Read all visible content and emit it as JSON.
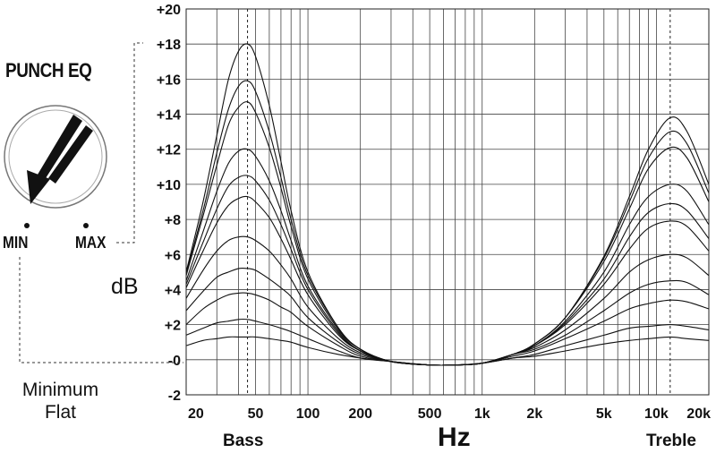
{
  "knob": {
    "title": "PUNCH EQ",
    "min_label": "MIN",
    "max_label": "MAX",
    "note_line1": "Minimum",
    "note_line2": "Flat"
  },
  "chart_data": {
    "type": "line",
    "title": "",
    "xlabel": "Hz",
    "ylabel": "dB",
    "x_scale": "log",
    "xlim": [
      20,
      20000
    ],
    "ylim": [
      -2,
      20
    ],
    "grid": true,
    "y_ticks": [
      "+20",
      "+18",
      "+16",
      "+14",
      "+12",
      "+10",
      "+8",
      "+6",
      "+4",
      "+2",
      "-0",
      "-2"
    ],
    "y_tick_values": [
      20,
      18,
      16,
      14,
      12,
      10,
      8,
      6,
      4,
      2,
      0,
      -2
    ],
    "x_ticks": [
      "20",
      "50",
      "100",
      "200",
      "500",
      "1k",
      "2k",
      "5k",
      "10k",
      "20k"
    ],
    "x_tick_values": [
      20,
      50,
      100,
      200,
      500,
      1000,
      2000,
      5000,
      10000,
      20000
    ],
    "x_minor_grid": [
      30,
      40,
      60,
      70,
      80,
      90,
      300,
      400,
      600,
      700,
      800,
      900,
      3000,
      4000,
      6000,
      7000,
      8000,
      9000
    ],
    "markers": [
      {
        "label": "Bass",
        "freq": 45
      },
      {
        "label": "Treble",
        "freq": 12000
      }
    ],
    "bass_freq": 45,
    "treble_freq": 12000,
    "curve_freqs": [
      20,
      25,
      30,
      35,
      40,
      45,
      50,
      60,
      70,
      80,
      100,
      150,
      200,
      300,
      500,
      700,
      1000,
      1500,
      2000,
      3000,
      5000,
      7000,
      9000,
      12000,
      15000,
      20000
    ],
    "series": [
      {
        "values": [
          5.0,
          9.0,
          12.8,
          16.0,
          17.6,
          18.0,
          17.3,
          14.5,
          11.3,
          8.5,
          5.0,
          1.8,
          0.6,
          -0.1,
          -0.3,
          -0.3,
          -0.2,
          0.3,
          0.9,
          2.4,
          5.9,
          9.3,
          12.0,
          13.8,
          13.0,
          10.0
        ]
      },
      {
        "values": [
          4.9,
          8.5,
          11.8,
          14.3,
          15.6,
          15.9,
          15.3,
          13.0,
          10.4,
          8.0,
          4.8,
          1.8,
          0.6,
          -0.1,
          -0.3,
          -0.3,
          -0.2,
          0.3,
          0.9,
          2.4,
          5.8,
          9.0,
          11.5,
          13.0,
          12.3,
          9.5
        ]
      },
      {
        "values": [
          4.8,
          8.2,
          11.1,
          13.4,
          14.4,
          14.7,
          14.1,
          12.1,
          9.8,
          7.6,
          4.6,
          1.7,
          0.6,
          -0.1,
          -0.3,
          -0.3,
          -0.2,
          0.3,
          0.9,
          2.4,
          5.6,
          8.6,
          10.9,
          12.1,
          11.5,
          9.0
        ]
      },
      {
        "values": [
          4.5,
          7.3,
          9.6,
          11.2,
          11.9,
          12.0,
          11.6,
          10.2,
          8.5,
          6.8,
          4.2,
          1.6,
          0.5,
          -0.1,
          -0.3,
          -0.3,
          -0.2,
          0.3,
          0.8,
          2.2,
          5.0,
          7.7,
          9.3,
          10.0,
          9.6,
          7.7
        ]
      },
      {
        "values": [
          4.3,
          6.7,
          8.6,
          9.9,
          10.4,
          10.5,
          10.2,
          9.1,
          7.7,
          6.3,
          4.0,
          1.5,
          0.5,
          -0.1,
          -0.3,
          -0.3,
          -0.2,
          0.3,
          0.8,
          2.1,
          4.6,
          7.0,
          8.4,
          8.9,
          8.5,
          6.9
        ]
      },
      {
        "values": [
          4.1,
          6.2,
          7.8,
          8.8,
          9.2,
          9.3,
          9.0,
          8.1,
          6.9,
          5.7,
          3.7,
          1.4,
          0.5,
          -0.1,
          -0.3,
          -0.3,
          -0.2,
          0.3,
          0.8,
          2.0,
          4.3,
          6.3,
          7.5,
          7.9,
          7.6,
          6.2
        ]
      },
      {
        "values": [
          3.5,
          5.1,
          6.2,
          6.8,
          7.0,
          7.0,
          6.8,
          6.2,
          5.4,
          4.6,
          3.0,
          1.2,
          0.4,
          -0.1,
          -0.3,
          -0.3,
          -0.2,
          0.3,
          0.7,
          1.7,
          3.5,
          5.0,
          5.7,
          6.0,
          5.8,
          4.8
        ]
      },
      {
        "values": [
          2.8,
          3.9,
          4.7,
          5.0,
          5.2,
          5.2,
          5.1,
          4.6,
          4.1,
          3.6,
          2.4,
          1.0,
          0.3,
          -0.1,
          -0.3,
          -0.3,
          -0.2,
          0.3,
          0.6,
          1.4,
          2.8,
          3.8,
          4.3,
          4.5,
          4.4,
          3.7
        ]
      },
      {
        "values": [
          2.0,
          2.9,
          3.4,
          3.7,
          3.8,
          3.8,
          3.7,
          3.4,
          3.0,
          2.7,
          1.9,
          0.8,
          0.2,
          -0.1,
          -0.3,
          -0.3,
          -0.2,
          0.2,
          0.5,
          1.2,
          2.2,
          2.9,
          3.2,
          3.4,
          3.3,
          2.9
        ]
      },
      {
        "values": [
          1.4,
          1.8,
          2.1,
          2.2,
          2.3,
          2.3,
          2.2,
          2.0,
          1.8,
          1.6,
          1.2,
          0.5,
          0.1,
          -0.1,
          -0.3,
          -0.3,
          -0.2,
          0.1,
          0.3,
          0.8,
          1.4,
          1.8,
          1.9,
          2.0,
          1.9,
          1.7
        ]
      },
      {
        "values": [
          0.8,
          1.1,
          1.2,
          1.3,
          1.3,
          1.3,
          1.3,
          1.2,
          1.1,
          1.0,
          0.7,
          0.3,
          0.1,
          -0.1,
          -0.3,
          -0.3,
          -0.2,
          0.1,
          0.2,
          0.5,
          0.9,
          1.1,
          1.2,
          1.3,
          1.2,
          1.1
        ]
      }
    ]
  }
}
